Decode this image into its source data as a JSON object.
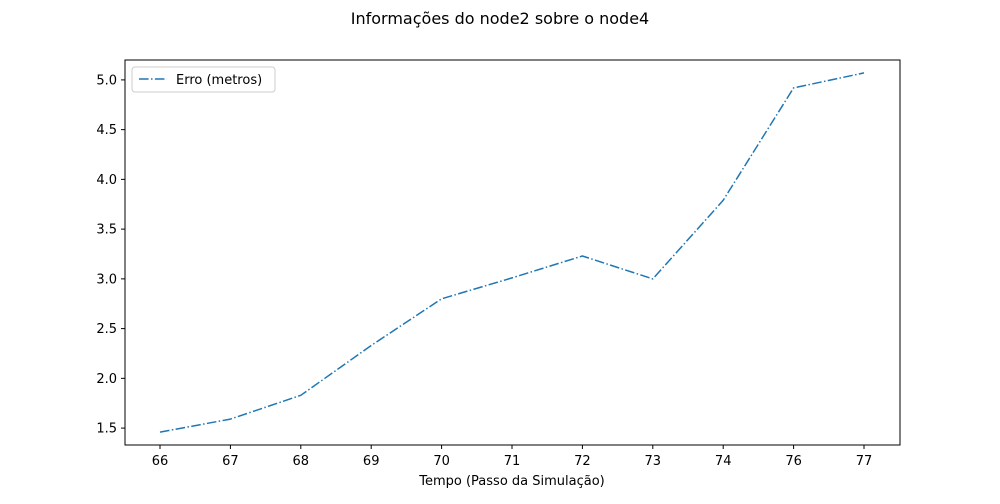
{
  "chart_data": {
    "type": "line",
    "title": "Informações do node2 sobre o node4",
    "xlabel": "Tempo (Passo da Simulação)",
    "ylabel": "",
    "categories": [
      "66",
      "67",
      "68",
      "69",
      "70",
      "71",
      "72",
      "73",
      "74",
      "76",
      "77"
    ],
    "series": [
      {
        "name": "Erro (metros)",
        "values": [
          1.46,
          1.59,
          1.83,
          2.33,
          2.8,
          3.01,
          3.23,
          3.0,
          3.79,
          4.92,
          5.07
        ],
        "color": "#1f77b4",
        "line_style": "dash-dot"
      }
    ],
    "ylim": [
      1.33,
      5.2
    ],
    "yticks": [
      "1.5",
      "2.0",
      "2.5",
      "3.0",
      "3.5",
      "4.0",
      "4.5",
      "5.0"
    ],
    "grid": false,
    "legend_position": "top-left"
  }
}
